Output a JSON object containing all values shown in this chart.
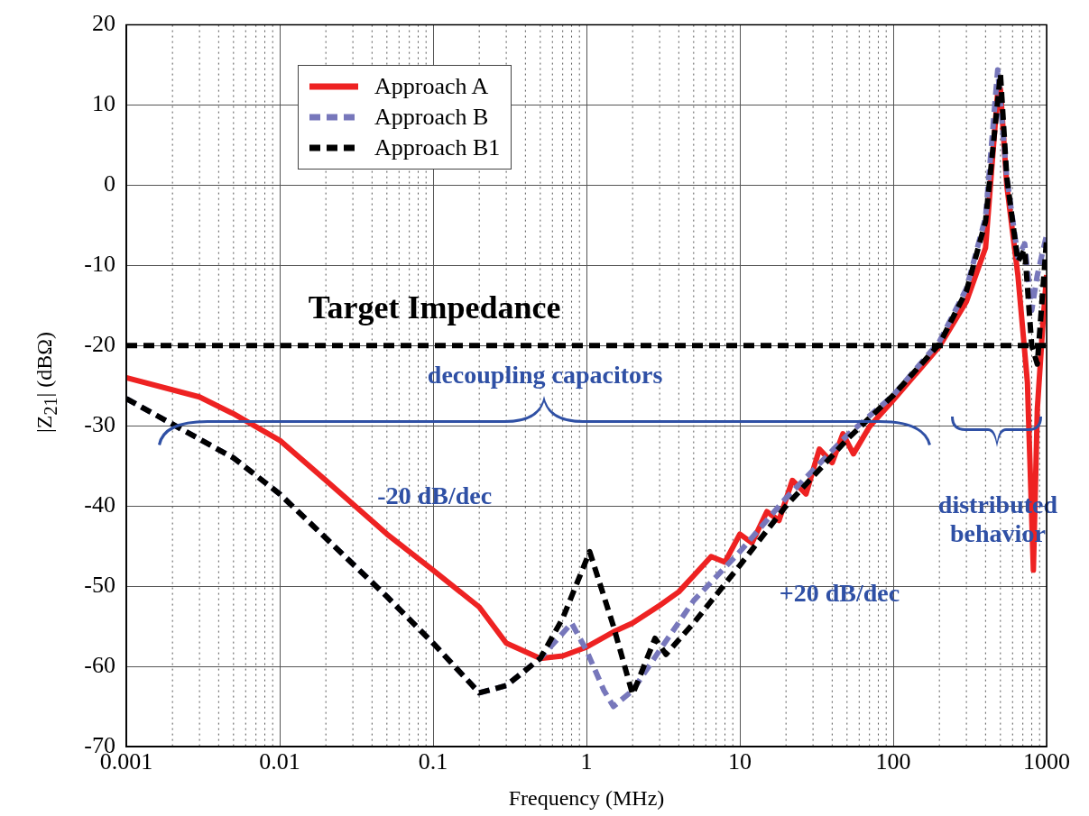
{
  "chart_data": {
    "type": "line",
    "xlabel": "Frequency (MHz)",
    "ylabel": "|Z$_{21}$| (dBΩ)",
    "log": "x",
    "grid": true,
    "legend": "top left",
    "xlim": [
      0.001,
      1000
    ],
    "xticks": [
      0.001,
      0.01,
      0.1,
      1,
      10,
      100,
      1000
    ],
    "ylim": [
      -70,
      20
    ],
    "yticks": [
      -70,
      -60,
      -50,
      -40,
      -30,
      -20,
      -10,
      0,
      10,
      20
    ],
    "series": [
      {
        "name": "Approach A",
        "color": "#ee2222",
        "line_style": "solid",
        "x": [
          0.001,
          0.003,
          0.005,
          0.01,
          0.02,
          0.05,
          0.1,
          0.2,
          0.3,
          0.5,
          0.7,
          1,
          1.5,
          2,
          3,
          4,
          5,
          6.5,
          8,
          10,
          12,
          15,
          18,
          22,
          27,
          33,
          40,
          47,
          55,
          70,
          100,
          200,
          300,
          400,
          480,
          500,
          550,
          650,
          750,
          820,
          870,
          950,
          1000
        ],
        "values": [
          -24,
          -26.4,
          -28.5,
          -31.8,
          -36.8,
          -43.5,
          -48,
          -52.6,
          -57.1,
          -59,
          -58.7,
          -57.6,
          -55.7,
          -54.6,
          -52.4,
          -50.7,
          -48.7,
          -46.3,
          -47,
          -43.5,
          -44.6,
          -40.7,
          -41.8,
          -36.8,
          -38.5,
          -32.9,
          -34.6,
          -31,
          -33.5,
          -30.1,
          -26.8,
          -20.1,
          -14.5,
          -7.8,
          11.6,
          12,
          0,
          -11.2,
          -24.6,
          -48,
          -27.9,
          -16.8,
          -11.2
        ]
      },
      {
        "name": "Approach B",
        "color": "#7777bb",
        "line_style": "dashed",
        "x": [
          0.001,
          0.002,
          0.005,
          0.01,
          0.02,
          0.05,
          0.1,
          0.2,
          0.3,
          0.5,
          0.8,
          1,
          1.3,
          1.5,
          2,
          3,
          5,
          10,
          20,
          50,
          100,
          200,
          300,
          400,
          480,
          550,
          650,
          720,
          800,
          870,
          1000
        ],
        "values": [
          -26.6,
          -29.8,
          -34,
          -38.5,
          -44,
          -51.3,
          -57.1,
          -63.3,
          -62.4,
          -59,
          -54.6,
          -58,
          -63,
          -65,
          -63,
          -58,
          -51.8,
          -45.7,
          -39,
          -31.2,
          -26.2,
          -19.5,
          -12.9,
          -4,
          14.4,
          1,
          -9,
          -7.3,
          -15.6,
          -11.2,
          -6.2
        ]
      },
      {
        "name": "Approach B1",
        "color": "#000000",
        "line_style": "dashed",
        "x": [
          0.001,
          0.002,
          0.005,
          0.01,
          0.02,
          0.05,
          0.1,
          0.2,
          0.3,
          0.5,
          0.7,
          1.05,
          1.5,
          2,
          2.8,
          3.3,
          5,
          10,
          20,
          50,
          100,
          200,
          300,
          400,
          500,
          550,
          650,
          720,
          800,
          870,
          1000
        ],
        "values": [
          -26.6,
          -29.8,
          -34,
          -38.5,
          -44,
          -51.3,
          -57.1,
          -63.3,
          -62.4,
          -59,
          -54,
          -45.7,
          -55,
          -63.5,
          -56.5,
          -58.5,
          -54.6,
          -47.4,
          -40,
          -31.7,
          -26.2,
          -19.8,
          -13.2,
          -4.5,
          13.9,
          1,
          -9.5,
          -8,
          -20,
          -22.3,
          -6.7
        ]
      }
    ],
    "ref_lines": [
      {
        "axis": "y",
        "value": -20,
        "label": "Target Impedance",
        "color": "#000000",
        "line_style": "dashed"
      }
    ],
    "annotations": [
      "decoupling capacitors",
      "-20 dB/dec",
      "+20 dB/dec",
      "distributed behavior"
    ]
  }
}
